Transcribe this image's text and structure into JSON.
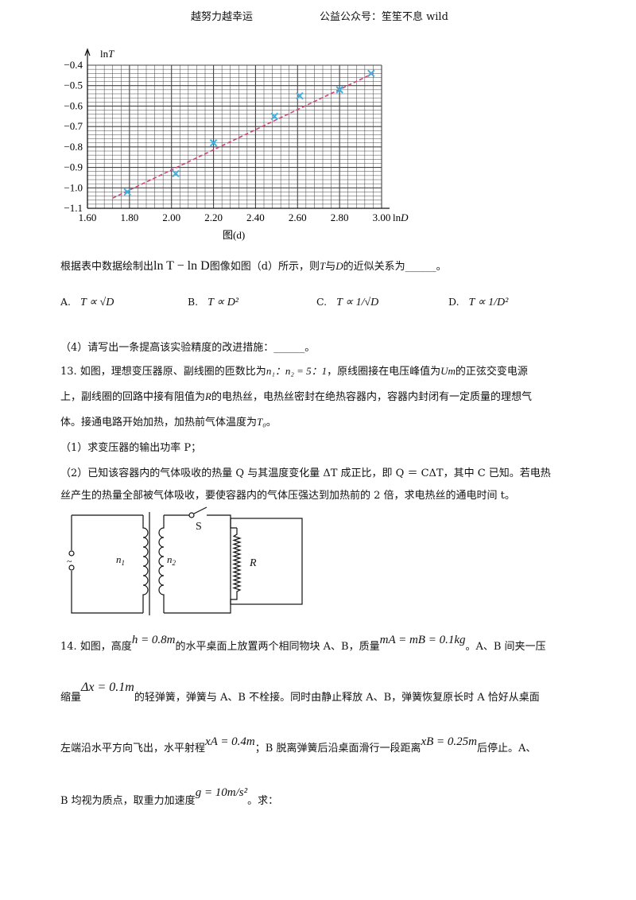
{
  "header": {
    "left": "越努力越幸运",
    "right": "公益公众号：笙笙不息 wild"
  },
  "chart_data": {
    "type": "scatter",
    "title": "",
    "caption": "图(d)",
    "xlabel": "lnD",
    "ylabel": "lnT",
    "xlim": [
      1.6,
      3.0
    ],
    "ylim": [
      -1.1,
      -0.4
    ],
    "xticks": [
      "1.60",
      "2.00",
      "2.20",
      "2.40",
      "2.60",
      "2.80",
      "3.00"
    ],
    "xtick_values": [
      1.6,
      2.0,
      2.2,
      2.4,
      2.6,
      2.8,
      3.0
    ],
    "yticks": [
      "−0.4",
      "−0.5",
      "−0.6",
      "−0.7",
      "−0.8",
      "−0.9",
      "−1.0",
      "−1.1"
    ],
    "ytick_values": [
      -0.4,
      -0.5,
      -0.6,
      -0.7,
      -0.8,
      -0.9,
      -1.0,
      -1.1
    ],
    "x_label_1_80": "1.80",
    "points": [
      {
        "x": 1.79,
        "y": -1.02
      },
      {
        "x": 2.02,
        "y": -0.93
      },
      {
        "x": 2.2,
        "y": -0.78
      },
      {
        "x": 2.49,
        "y": -0.65
      },
      {
        "x": 2.61,
        "y": -0.55
      },
      {
        "x": 2.8,
        "y": -0.52
      },
      {
        "x": 2.95,
        "y": -0.44
      }
    ],
    "fit_line": {
      "x": [
        1.72,
        2.96
      ],
      "y": [
        -1.05,
        -0.44
      ]
    },
    "grid": true,
    "colors": {
      "points": "#3fb0e0",
      "fit": "#d2447a",
      "grid": "#444444"
    }
  },
  "q12": {
    "text_a": "根据表中数据绘制出",
    "text_formula": "ln T − ln D",
    "text_b": "图像如图（d）所示，则",
    "T": "T",
    "text_c": "与",
    "D": "D",
    "text_d": "的近似关系为______。",
    "options": [
      {
        "label": "A.",
        "expr": "T ∝ √D"
      },
      {
        "label": "B.",
        "expr": "T ∝ D²"
      },
      {
        "label": "C.",
        "expr": "T ∝ 1/√D"
      },
      {
        "label": "D.",
        "expr": "T ∝ 1/D²"
      }
    ],
    "part4": "（4）请写出一条提高该实验精度的改进措施：______。"
  },
  "q13": {
    "line1a": "13. 如图，理想变压器原、副线圈的匝数比为",
    "ratio": "n₁：n₂ = 5：1",
    "line1b": "，原线圈接在电压峰值为",
    "Um": "Um",
    "line1c": "的正弦交变电源",
    "line2a": "上，副线圈的回路中接有阻值为",
    "R": "R",
    "line2b": "的电热丝，电热丝密封在绝热容器内，容器内封闭有一定质量的理想气",
    "line3a": "体。接通电路开始加热，加热前气体温度为",
    "T0": "T₀",
    "line3b": "。",
    "sub1": "（1）求变压器的输出功率 P；",
    "sub2a": "（2）已知该容器内的气体吸收的热量 Q 与其温度变化量 ΔT 成正比，即 Q ＝ CΔT，其中 C 已知。若电热",
    "sub2b": "丝产生的热量全部被气体吸收，要使容器内的气体压强达到加热前的 2 倍，求电热丝的通电时间 t。",
    "circuit": {
      "switch": "S",
      "n1": "n",
      "n1_sub": "1",
      "n2": "n",
      "n2_sub": "2",
      "R": "R",
      "source": "~"
    }
  },
  "q14": {
    "l1a": "14. 如图，高度",
    "h": "h = 0.8m",
    "l1b": "的水平桌面上放置两个相同物块 A、B，质量",
    "m": "mA = mB = 0.1kg",
    "l1c": "。A、B 间夹一压",
    "l2a": "缩量",
    "dx": "Δx = 0.1m",
    "l2b": "的轻弹簧，弹簧与 A、B 不栓接。同时由静止释放 A、B，弹簧恢复原长时 A 恰好从桌面",
    "l3a": "左端沿水平方向飞出，水平射程",
    "xA": "xA = 0.4m",
    "l3b": "；B 脱离弹簧后沿桌面滑行一段距离",
    "xB": "xB = 0.25m",
    "l3c": "后停止。A、",
    "l4a": "B 均视为质点，取重力加速度",
    "g": "g = 10m/s²",
    "l4b": "。求："
  }
}
